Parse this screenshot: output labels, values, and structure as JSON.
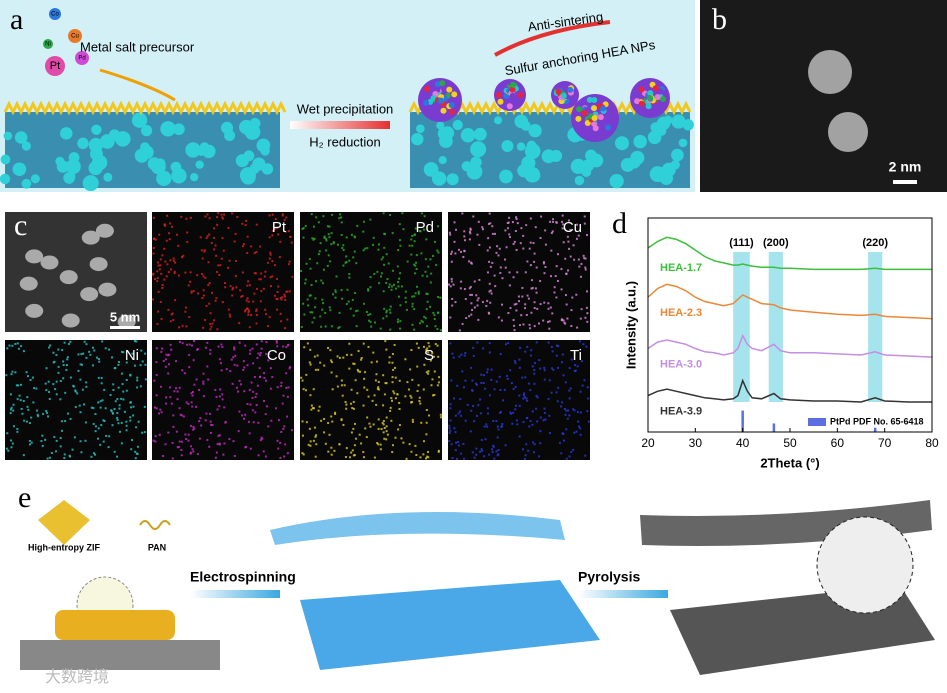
{
  "panels": {
    "a": {
      "label": "a",
      "precursor_atoms": [
        "Co",
        "Cu",
        "Ni",
        "Pd",
        "Pt"
      ],
      "precursor": "Metal salt precursor",
      "step1": "Wet precipitation",
      "step2": "H₂ reduction",
      "arrow_label": "Anti-sintering",
      "product": "Sulfur anchoring HEA NPs"
    },
    "b": {
      "label": "b",
      "scale_bar": "2 nm"
    },
    "c": {
      "label": "c",
      "scale_bar": "5 nm",
      "maps": [
        "Pt",
        "Pd",
        "Cu",
        "Ni",
        "Co",
        "S",
        "Ti"
      ]
    },
    "e": {
      "label": "e",
      "precursor": "High-entropy ZIF",
      "polymer": "PAN",
      "step1": "Electrospinning",
      "step2": "Pyrolysis"
    }
  },
  "watermark": "大数跨境",
  "chart_data": {
    "type": "line",
    "panel_label": "d",
    "xlabel": "2Theta (°)",
    "ylabel": "Intensity (a.u.)",
    "x": [
      20,
      22,
      24,
      26,
      28,
      30,
      32,
      34,
      36,
      38,
      39,
      40,
      41,
      42,
      44,
      46.6,
      48,
      50,
      55,
      60,
      65,
      68,
      70,
      75,
      80
    ],
    "series": [
      {
        "name": "HEA-1.7",
        "color": "#3cbf3c",
        "values": [
          86,
          89,
          91,
          90,
          88,
          85,
          82,
          80,
          79,
          78,
          78,
          78.5,
          78,
          77.5,
          77,
          77,
          76.5,
          76.5,
          76,
          76,
          76,
          76.5,
          76,
          76,
          76
        ]
      },
      {
        "name": "HEA-2.3",
        "color": "#e8893a",
        "values": [
          63,
          67,
          69,
          68,
          66,
          63,
          61,
          60,
          59,
          60,
          62,
          64,
          63,
          62,
          60,
          59.5,
          58,
          57,
          56,
          55,
          54.5,
          55,
          54,
          53.5,
          53
        ]
      },
      {
        "name": "HEA-3.0",
        "color": "#c58ee0",
        "values": [
          39,
          42,
          43,
          42,
          41,
          39,
          37.5,
          37,
          36,
          37,
          39,
          45,
          41,
          39,
          38,
          41,
          38,
          37,
          37,
          36.5,
          36,
          37.5,
          36,
          35.5,
          35
        ]
      },
      {
        "name": "HEA-3.9",
        "color": "#333333",
        "values": [
          17,
          19,
          20,
          19,
          18,
          17,
          16,
          15.5,
          15,
          15.5,
          17,
          24,
          19,
          16,
          15.5,
          18,
          15.5,
          15,
          14.5,
          14.5,
          14,
          16,
          14.5,
          14,
          14
        ]
      }
    ],
    "reference": {
      "name": "PtPd PDF No. 65-6418",
      "color": "#5b6fe0",
      "x": [
        40,
        46.6,
        68
      ],
      "values": [
        10,
        4,
        2
      ]
    },
    "bands": [
      {
        "label": "(111)",
        "x": [
          38,
          41.5
        ]
      },
      {
        "label": "(200)",
        "x": [
          45.5,
          48.5
        ]
      },
      {
        "label": "(220)",
        "x": [
          66.5,
          69.5
        ]
      }
    ],
    "band_color": "#8fdde9",
    "xlim": [
      20,
      80
    ],
    "xticks": [
      20,
      30,
      40,
      50,
      60,
      70,
      80
    ],
    "ylim": [
      0,
      100
    ]
  }
}
